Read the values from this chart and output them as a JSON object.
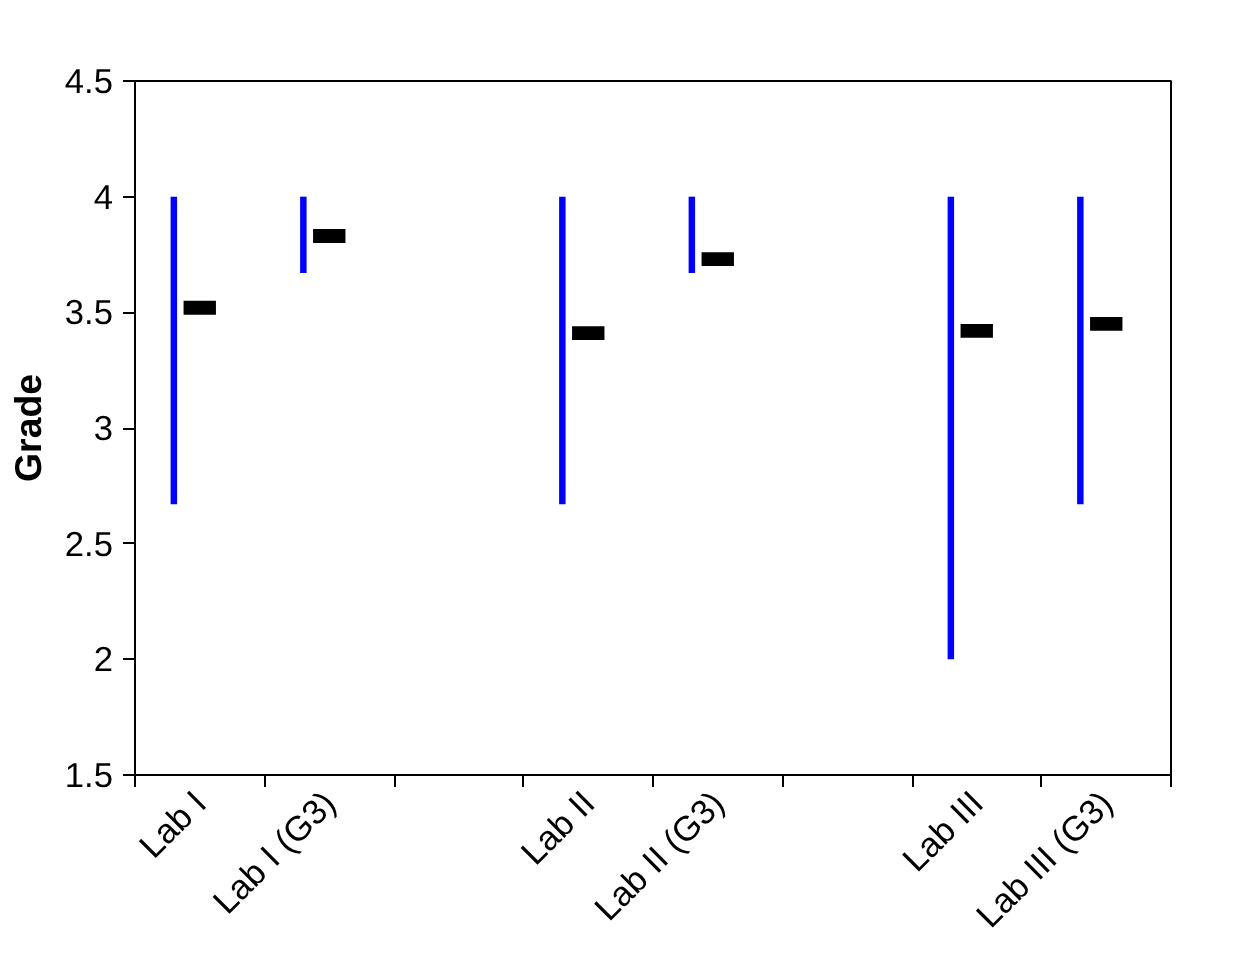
{
  "chart_data": {
    "type": "bar",
    "ylabel": "Grade",
    "categories": [
      "Lab I",
      "Lab I (G3)",
      null,
      "Lab II",
      "Lab II (G3)",
      null,
      "Lab III",
      "Lab III (G3)"
    ],
    "ylim": [
      1.5,
      4.5
    ],
    "yticks": [
      1.5,
      2,
      2.5,
      3,
      3.5,
      4,
      4.5
    ],
    "grid": false,
    "series": [
      {
        "color": "#0000ff",
        "base": [
          2.67,
          3.67,
          null,
          2.67,
          3.67,
          null,
          2.0,
          2.67
        ],
        "values": [
          1.33,
          0.33,
          null,
          1.33,
          0.33,
          null,
          2.0,
          1.33
        ]
      },
      {
        "type": "scatter",
        "marker": "square",
        "color": "#000000",
        "values": [
          3.52,
          3.83,
          null,
          3.41,
          3.73,
          null,
          3.42,
          3.45
        ]
      }
    ]
  }
}
